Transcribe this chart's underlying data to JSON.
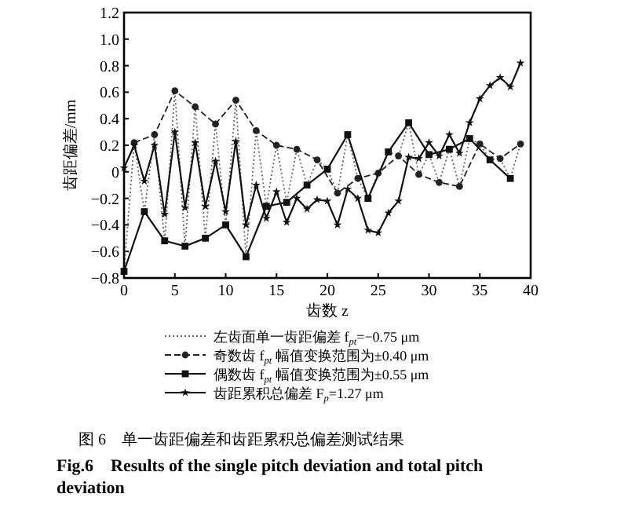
{
  "chart_data": {
    "type": "line",
    "title": "图 6　单一齿距偏差和齿距累积总偏差测试结果",
    "subtitle": "Fig.6　Results of the single pitch deviation and total pitch deviation",
    "xlabel": "齿数 z",
    "ylabel": "齿距偏差/mm",
    "xlim": [
      0,
      40
    ],
    "ylim": [
      -0.8,
      1.2
    ],
    "xticks": [
      0,
      5,
      10,
      15,
      20,
      25,
      30,
      35,
      40
    ],
    "yticks": [
      -0.8,
      -0.6,
      -0.4,
      -0.2,
      {
        "value": 0,
        "label": "0"
      },
      0.2,
      0.4,
      0.6,
      0.8,
      {
        "value": 1,
        "label": "1.0"
      },
      1.2
    ],
    "grid": false,
    "legend": "bottom",
    "series": [
      {
        "name": "左齿面单一齿距偏差 f$_{pt}$=−0.75 μm",
        "color": "#666666",
        "line_style": "dotted",
        "marker": "none",
        "x": [
          0,
          1,
          2,
          3,
          4,
          5,
          6,
          7,
          8,
          9,
          10,
          11,
          12,
          13,
          14,
          15,
          16,
          17,
          18,
          19,
          20,
          21,
          22,
          23,
          24,
          25,
          26,
          27,
          28,
          29,
          30,
          31,
          32,
          33,
          34,
          35,
          36,
          37,
          38,
          39
        ],
        "values": [
          -0.75,
          0.22,
          -0.3,
          0.28,
          -0.52,
          0.61,
          -0.56,
          0.49,
          -0.5,
          0.36,
          -0.4,
          0.54,
          -0.64,
          0.31,
          -0.26,
          0.2,
          -0.23,
          0.17,
          -0.1,
          0.09,
          0.02,
          -0.16,
          0.28,
          -0.05,
          -0.2,
          -0.01,
          0.15,
          0.12,
          0.37,
          -0.02,
          0.13,
          -0.08,
          0.17,
          -0.11,
          0.25,
          0.21,
          0.09,
          0.1,
          -0.05,
          0.21
        ]
      },
      {
        "name": "奇数齿 f$_{pt}$ 幅值变换范围为±0.40 μm",
        "color": "#222222",
        "line_style": "dashed",
        "marker": "circle",
        "x": [
          1,
          3,
          5,
          7,
          9,
          11,
          13,
          15,
          17,
          19,
          21,
          23,
          25,
          27,
          29,
          31,
          33,
          35,
          37,
          39
        ],
        "values": [
          0.22,
          0.28,
          0.61,
          0.49,
          0.36,
          0.54,
          0.31,
          0.2,
          0.17,
          0.09,
          -0.16,
          -0.05,
          -0.01,
          0.12,
          -0.02,
          -0.08,
          -0.11,
          0.21,
          0.1,
          0.21
        ]
      },
      {
        "name": "偶数齿 f$_{pt}$ 幅值变换范围为±0.55 μm",
        "color": "#111111",
        "line_style": "solid",
        "marker": "square",
        "x": [
          0,
          2,
          4,
          6,
          8,
          10,
          12,
          14,
          16,
          18,
          20,
          22,
          24,
          26,
          28,
          30,
          32,
          34,
          36,
          38
        ],
        "values": [
          -0.75,
          -0.3,
          -0.52,
          -0.56,
          -0.5,
          -0.4,
          -0.64,
          -0.26,
          -0.23,
          -0.1,
          0.02,
          0.28,
          -0.2,
          0.15,
          0.37,
          0.13,
          0.17,
          0.25,
          0.09,
          -0.05
        ]
      },
      {
        "name": "齿距累积总偏差 F$_{p}$=1.27 μm",
        "color": "#111111",
        "line_style": "solid",
        "marker": "star",
        "x": [
          0,
          1,
          2,
          3,
          4,
          5,
          6,
          7,
          8,
          9,
          10,
          11,
          12,
          13,
          14,
          15,
          16,
          17,
          18,
          19,
          20,
          21,
          22,
          23,
          24,
          25,
          26,
          27,
          28,
          29,
          30,
          31,
          32,
          33,
          34,
          35,
          36,
          37,
          38,
          39
        ],
        "values": [
          0.03,
          0.2,
          -0.07,
          0.2,
          -0.32,
          0.3,
          -0.27,
          0.22,
          -0.26,
          0.08,
          -0.3,
          0.23,
          -0.4,
          -0.1,
          -0.35,
          -0.15,
          -0.38,
          -0.2,
          -0.28,
          -0.21,
          -0.22,
          -0.4,
          -0.13,
          -0.2,
          -0.44,
          -0.46,
          -0.31,
          -0.22,
          0.11,
          0.1,
          0.22,
          0.12,
          0.28,
          0.14,
          0.37,
          0.55,
          0.65,
          0.71,
          0.64,
          0.82
        ]
      }
    ]
  }
}
